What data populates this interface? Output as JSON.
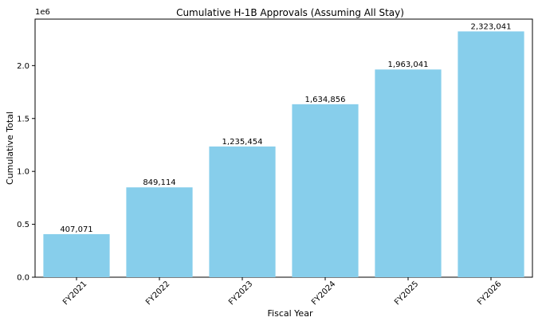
{
  "chart_data": {
    "type": "bar",
    "title": "Cumulative H-1B Approvals (Assuming All Stay)",
    "xlabel": "Fiscal Year",
    "ylabel": "Cumulative Total",
    "y_multiplier_label": "1e6",
    "categories": [
      "FY2021",
      "FY2022",
      "FY2023",
      "FY2024",
      "FY2025",
      "FY2026"
    ],
    "values": [
      407071,
      849114,
      1235454,
      1634856,
      1963041,
      2323041
    ],
    "data_labels": [
      "407,071",
      "849,114",
      "1,235,454",
      "1,634,856",
      "1,963,041",
      "2,323,041"
    ],
    "ylim": [
      0,
      2439193
    ],
    "yticks": [
      0,
      500000,
      1000000,
      1500000,
      2000000
    ],
    "ytick_labels": [
      "0.0",
      "0.5",
      "1.0",
      "1.5",
      "2.0"
    ],
    "grid": false,
    "bar_color": "#87CEEB",
    "x_tick_rotation_deg": 45
  }
}
